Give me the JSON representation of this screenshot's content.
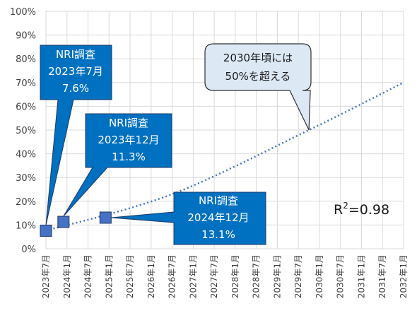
{
  "chart_data": {
    "type": "scatter",
    "title": "",
    "xlabel": "",
    "ylabel": "",
    "ylim": [
      0,
      100
    ],
    "y_tick_labels": [
      "0%",
      "10%",
      "20%",
      "30%",
      "40%",
      "50%",
      "60%",
      "70%",
      "80%",
      "90%",
      "100%"
    ],
    "x_tick_labels": [
      "2023年7月",
      "2024年1月",
      "2024年7月",
      "2025年1月",
      "2025年7月",
      "2026年1月",
      "2026年7月",
      "2027年1月",
      "2027年7月",
      "2028年1月",
      "2028年7月",
      "2029年1月",
      "2029年7月",
      "2030年1月",
      "2030年7月",
      "2031年1月",
      "2031年7月",
      "2032年1月"
    ],
    "grid": true,
    "points": [
      {
        "x": "2023年7月",
        "y": 7.6
      },
      {
        "x": "2023年12月",
        "y": 11.3
      },
      {
        "x": "2024年12月",
        "y": 13.1
      }
    ],
    "trendline": {
      "style": "dotted",
      "r_squared": "0.98",
      "points": [
        {
          "x": "2023年7月",
          "y": 7.6
        },
        {
          "x": "2026年7月",
          "y": 23
        },
        {
          "x": "2029年10月",
          "y": 50
        },
        {
          "x": "2032年1月",
          "y": 70
        }
      ]
    },
    "annotations": [
      {
        "lines": [
          "NRI調査",
          "2023年7月",
          "7.6%"
        ]
      },
      {
        "lines": [
          "NRI調査",
          "2023年12月",
          "11.3%"
        ]
      },
      {
        "lines": [
          "NRI調査",
          "2024年12月",
          "13.1%"
        ]
      },
      {
        "lines": [
          "2030年頃には",
          "50%を超える"
        ]
      }
    ],
    "r2_label": {
      "prefix": "R",
      "sup": "2",
      "suffix": "=0.98"
    }
  },
  "colors": {
    "marker": "#4472c4",
    "callout": "#0070c0",
    "callout_note": "#dce9f5",
    "trend": "#4472c4",
    "grid": "#d9d9d9"
  }
}
